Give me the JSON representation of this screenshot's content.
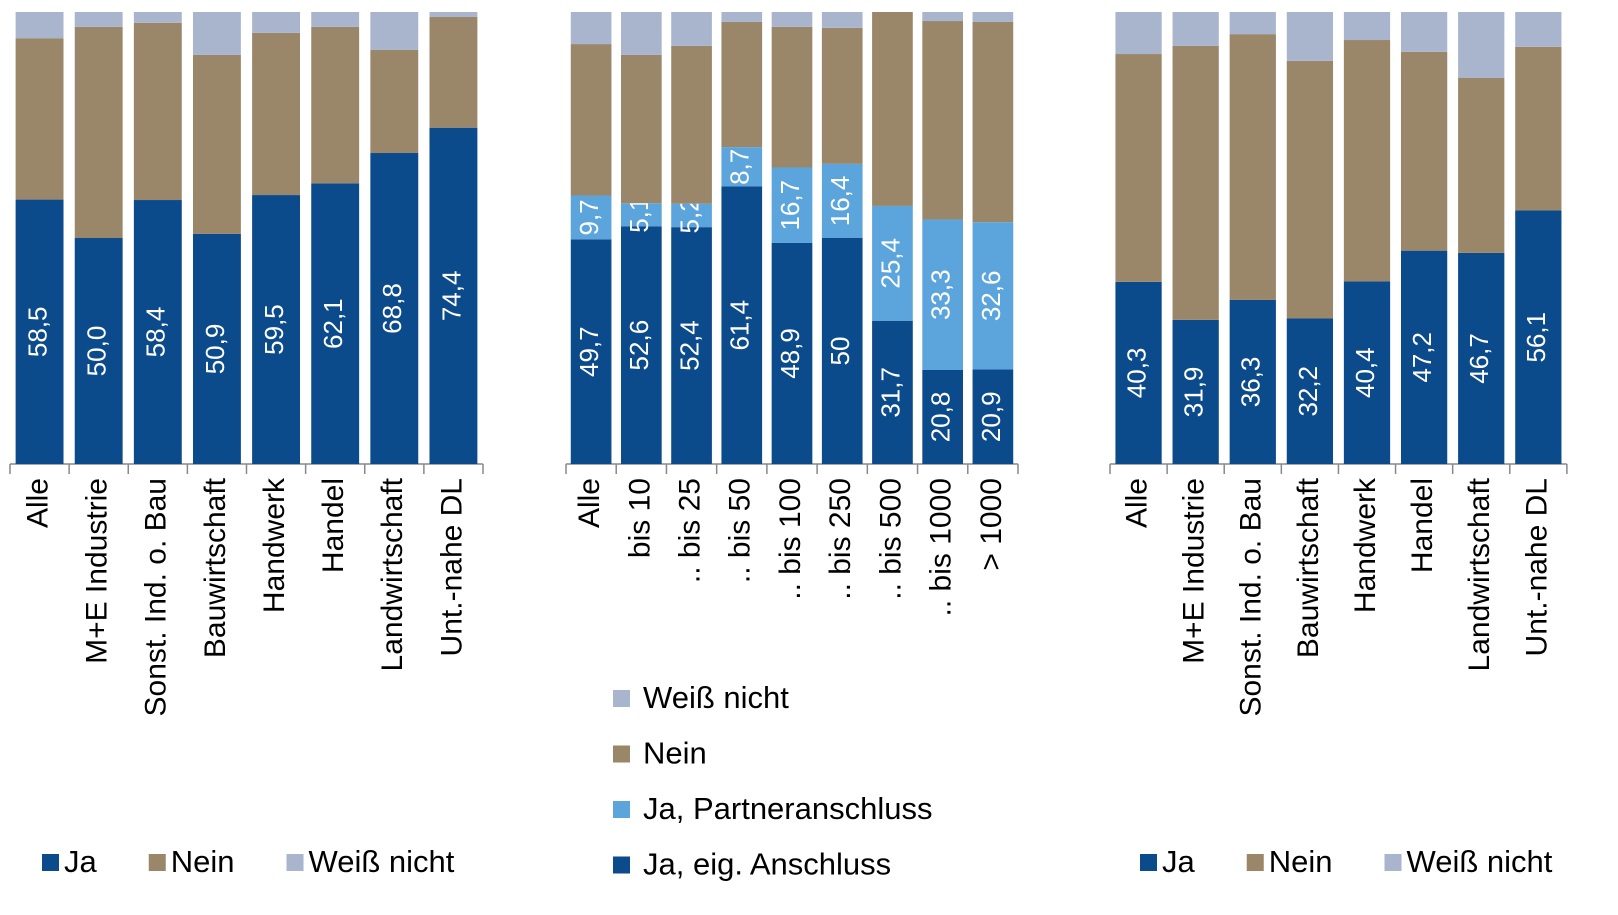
{
  "chart_data": [
    {
      "type": "bar",
      "stacked": true,
      "legend": "bottom",
      "ylim": [
        0,
        100
      ],
      "categories": [
        "Alle",
        "M+E Industrie",
        "Sonst. Ind. o. Bau",
        "Bauwirtschaft",
        "Handwerk",
        "Handel",
        "Landwirtschaft",
        "Unt.-nahe DL"
      ],
      "series": [
        {
          "name": "Ja",
          "color": "#0b4a8b",
          "values": [
            58.5,
            50.0,
            58.4,
            50.9,
            59.5,
            62.1,
            68.8,
            74.4
          ],
          "value_labels": [
            "58,5",
            "50,0",
            "58,4",
            "50,9",
            "59,5",
            "62,1",
            "68,8",
            "74,4"
          ]
        },
        {
          "name": "Nein",
          "color": "#9a8669",
          "values": [
            35.7,
            46.7,
            39.2,
            39.6,
            35.9,
            34.6,
            22.8,
            24.5
          ]
        },
        {
          "name": "Weiß nicht",
          "color": "#a9b5cc",
          "values": [
            5.8,
            3.3,
            2.4,
            9.5,
            4.6,
            3.3,
            8.4,
            1.1
          ]
        }
      ]
    },
    {
      "type": "bar",
      "stacked": true,
      "legend": "vertical",
      "ylim": [
        0,
        100
      ],
      "categories": [
        "Alle",
        "bis 10",
        ".. bis 25",
        ".. bis 50",
        ".. bis 100",
        ".. bis 250",
        ".. bis 500",
        ".. bis 1000",
        "> 1000"
      ],
      "series": [
        {
          "name": "Ja, eig. Anschluss",
          "color": "#0b4a8b",
          "values": [
            49.7,
            52.6,
            52.4,
            61.4,
            48.9,
            50,
            31.7,
            20.8,
            20.9
          ],
          "value_labels": [
            "49,7",
            "52,6",
            "52,4",
            "61,4",
            "48,9",
            "50",
            "31,7",
            "20,8",
            "20,9"
          ]
        },
        {
          "name": "Ja, Partneranschluss",
          "color": "#5ba5dc",
          "values": [
            9.7,
            5.1,
            5.2,
            8.7,
            16.7,
            16.4,
            25.4,
            33.3,
            32.6
          ],
          "value_labels": [
            "9,7",
            "5,1",
            "5,2",
            "8,7",
            "16,7",
            "16,4",
            "25,4",
            "33,3",
            "32,6"
          ]
        },
        {
          "name": "Nein",
          "color": "#9a8669",
          "values": [
            33.5,
            32.8,
            34.9,
            27.7,
            31.1,
            30.1,
            42.9,
            43.9,
            44.3
          ]
        },
        {
          "name": "Weiß nicht",
          "color": "#a9b5cc",
          "values": [
            7.1,
            9.5,
            7.5,
            2.2,
            3.3,
            3.5,
            0,
            2.0,
            2.2
          ]
        }
      ]
    },
    {
      "type": "bar",
      "stacked": true,
      "legend": "bottom",
      "ylim": [
        0,
        100
      ],
      "categories": [
        "Alle",
        "M+E Industrie",
        "Sonst. Ind. o. Bau",
        "Bauwirtschaft",
        "Handwerk",
        "Handel",
        "Landwirtschaft",
        "Unt.-nahe DL"
      ],
      "series": [
        {
          "name": "Ja",
          "color": "#0b4a8b",
          "values": [
            40.3,
            31.9,
            36.3,
            32.2,
            40.4,
            47.2,
            46.7,
            56.1
          ],
          "value_labels": [
            "40,3",
            "31,9",
            "36,3",
            "32,2",
            "40,4",
            "47,2",
            "46,7",
            "56,1"
          ]
        },
        {
          "name": "Nein",
          "color": "#9a8669",
          "values": [
            50.4,
            60.6,
            58.8,
            57.0,
            53.4,
            44.0,
            38.7,
            36.2
          ]
        },
        {
          "name": "Weiß nicht",
          "color": "#a9b5cc",
          "values": [
            9.3,
            7.5,
            4.9,
            10.8,
            6.2,
            8.8,
            14.6,
            7.7
          ]
        }
      ]
    }
  ]
}
